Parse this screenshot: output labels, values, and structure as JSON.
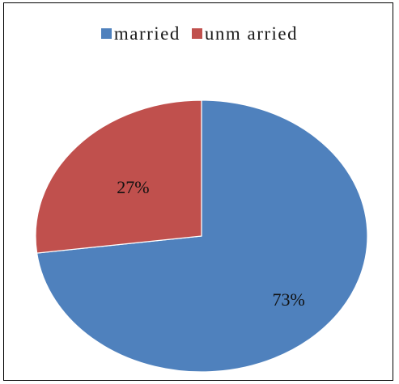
{
  "chart_data": {
    "type": "pie",
    "categories": [
      "married",
      "unmarried"
    ],
    "legend_labels": [
      "married",
      "unm arried"
    ],
    "values": [
      73,
      27
    ],
    "data_labels": [
      "73%",
      "27%"
    ],
    "colors": [
      "#4f81bd",
      "#c0504d"
    ],
    "start_angle_deg": 0,
    "legend_position": "top"
  }
}
